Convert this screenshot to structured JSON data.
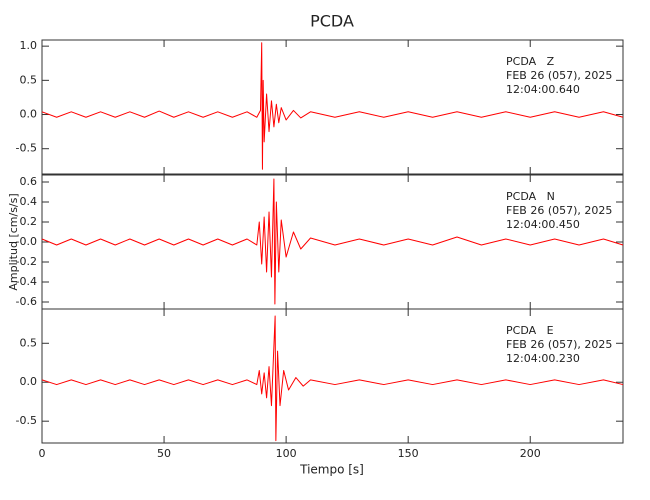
{
  "chart_data": [
    {
      "type": "line",
      "title": "PCDA",
      "annotation": [
        "PCDA   Z",
        "FEB 26 (057), 2025",
        "12:04:00.640"
      ],
      "color": "#ff0000",
      "xlim": [
        0,
        238
      ],
      "ylim": [
        -0.87,
        1.09
      ],
      "yticks": [
        -0.5,
        {
          "value": 0,
          "label": "0.0"
        },
        0.5,
        {
          "value": 1,
          "label": "1.0"
        }
      ],
      "x": [
        0,
        6,
        12,
        18,
        24,
        30,
        36,
        42,
        48,
        54,
        60,
        66,
        72,
        78,
        84,
        88,
        89.5,
        90,
        90.3,
        90.6,
        91,
        92,
        93,
        94,
        95,
        96,
        97,
        98,
        100,
        103,
        106,
        110,
        120,
        130,
        140,
        150,
        160,
        170,
        180,
        190,
        200,
        210,
        220,
        230,
        238
      ],
      "values": [
        0.04,
        -0.04,
        0.04,
        -0.04,
        0.04,
        -0.04,
        0.04,
        -0.04,
        0.05,
        -0.04,
        0.04,
        -0.04,
        0.04,
        -0.04,
        0.04,
        -0.04,
        0.06,
        1.05,
        -0.8,
        0.5,
        -0.4,
        0.3,
        -0.25,
        0.2,
        -0.18,
        0.15,
        -0.12,
        0.1,
        -0.08,
        0.06,
        -0.05,
        0.04,
        -0.04,
        0.04,
        -0.04,
        0.04,
        -0.04,
        0.04,
        -0.04,
        0.04,
        -0.04,
        0.04,
        -0.04,
        0.04,
        -0.04
      ]
    },
    {
      "type": "line",
      "ylabel": "Amplitud [cm/s/s]",
      "annotation": [
        "PCDA   N",
        "FEB 26 (057), 2025",
        "12:04:00.450"
      ],
      "color": "#ff0000",
      "xlim": [
        0,
        238
      ],
      "ylim": [
        -0.67,
        0.67
      ],
      "yticks": [
        {
          "value": -0.6,
          "label": "-0.6"
        },
        {
          "value": -0.4,
          "label": "-0.4"
        },
        {
          "value": -0.2,
          "label": "-0.2"
        },
        {
          "value": 0,
          "label": "-0.0"
        },
        0.2,
        0.4,
        0.6
      ],
      "x": [
        0,
        6,
        12,
        18,
        24,
        30,
        36,
        42,
        48,
        54,
        60,
        66,
        72,
        78,
        84,
        88,
        89,
        90,
        91,
        92,
        93,
        94,
        95,
        95.4,
        96,
        97,
        98,
        100,
        103,
        106,
        110,
        120,
        130,
        140,
        150,
        160,
        170,
        180,
        190,
        200,
        210,
        220,
        230,
        238
      ],
      "values": [
        0.03,
        -0.03,
        0.03,
        -0.03,
        0.03,
        -0.03,
        0.03,
        -0.03,
        0.03,
        -0.03,
        0.03,
        -0.03,
        0.03,
        -0.03,
        0.03,
        -0.03,
        0.2,
        -0.22,
        0.25,
        -0.3,
        0.3,
        -0.35,
        0.63,
        -0.62,
        0.4,
        -0.3,
        0.22,
        -0.15,
        0.1,
        -0.07,
        0.04,
        -0.03,
        0.03,
        -0.03,
        0.03,
        -0.03,
        0.05,
        -0.03,
        0.03,
        -0.03,
        0.03,
        -0.03,
        0.03,
        -0.03
      ]
    },
    {
      "type": "line",
      "xlabel": "Tiempo [s]",
      "annotation": [
        "PCDA   E",
        "FEB 26 (057), 2025",
        "12:04:00.230"
      ],
      "color": "#ff0000",
      "xlim": [
        0,
        238
      ],
      "ylim": [
        -0.78,
        0.94
      ],
      "xticks": [
        0,
        50,
        100,
        150,
        200
      ],
      "yticks": [
        -0.5,
        {
          "value": 0,
          "label": "0.0"
        },
        0.5
      ],
      "x": [
        0,
        6,
        12,
        18,
        24,
        30,
        36,
        42,
        48,
        54,
        60,
        66,
        72,
        78,
        84,
        88,
        89,
        90,
        91,
        92,
        93,
        94,
        95.5,
        95.8,
        96.5,
        97.5,
        99,
        101,
        104,
        107,
        110,
        120,
        130,
        140,
        150,
        160,
        170,
        180,
        190,
        200,
        210,
        220,
        230,
        238
      ],
      "values": [
        0.03,
        -0.03,
        0.03,
        -0.03,
        0.03,
        -0.03,
        0.03,
        -0.03,
        0.03,
        -0.03,
        0.03,
        -0.03,
        0.03,
        -0.03,
        0.03,
        -0.03,
        0.15,
        -0.15,
        0.12,
        -0.2,
        0.2,
        -0.3,
        0.85,
        -0.75,
        0.4,
        -0.3,
        0.15,
        -0.1,
        0.06,
        -0.05,
        0.03,
        -0.03,
        0.03,
        -0.03,
        0.03,
        -0.03,
        0.03,
        -0.03,
        0.03,
        -0.03,
        0.03,
        -0.03,
        0.03,
        -0.03
      ]
    }
  ]
}
